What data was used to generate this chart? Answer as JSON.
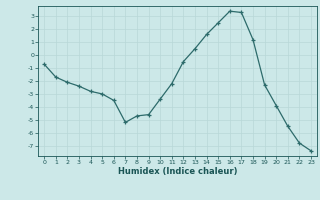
{
  "x": [
    0,
    1,
    2,
    3,
    4,
    5,
    6,
    7,
    8,
    9,
    10,
    11,
    12,
    13,
    14,
    15,
    16,
    17,
    18,
    19,
    20,
    21,
    22,
    23
  ],
  "y": [
    -0.7,
    -1.7,
    -2.1,
    -2.4,
    -2.8,
    -3.0,
    -3.5,
    -5.2,
    -4.7,
    -4.6,
    -3.4,
    -2.2,
    -0.5,
    0.5,
    1.6,
    2.5,
    3.4,
    3.3,
    1.2,
    -2.3,
    -3.9,
    -5.5,
    -6.8,
    -7.4
  ],
  "xlabel": "Humidex (Indice chaleur)",
  "bg_color": "#cce8e8",
  "line_color": "#2d6b6b",
  "grid_color": "#b8d8d8",
  "text_color": "#1a5555",
  "ylim": [
    -7.8,
    3.8
  ],
  "xlim": [
    -0.5,
    23.5
  ],
  "yticks": [
    -7,
    -6,
    -5,
    -4,
    -3,
    -2,
    -1,
    0,
    1,
    2,
    3
  ],
  "xticks": [
    0,
    1,
    2,
    3,
    4,
    5,
    6,
    7,
    8,
    9,
    10,
    11,
    12,
    13,
    14,
    15,
    16,
    17,
    18,
    19,
    20,
    21,
    22,
    23
  ],
  "tick_fontsize": 4.5,
  "xlabel_fontsize": 6.0
}
